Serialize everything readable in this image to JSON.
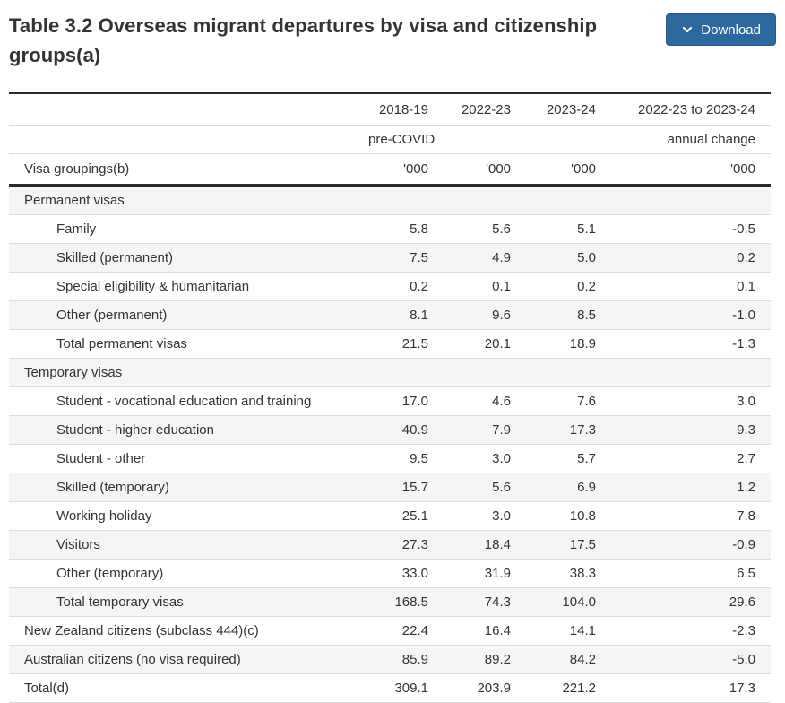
{
  "header": {
    "title": "Table 3.2 Overseas migrant departures by visa and citizenship groups(a)",
    "download_label": "Download",
    "download_icon": "chevron-down-icon"
  },
  "colors": {
    "accent_blue": "#2d689e",
    "text": "#333333",
    "row_shade": "#f5f5f5",
    "border_light": "#dddddd",
    "border_dark": "#2b2b2b"
  },
  "table": {
    "head": {
      "years": [
        "2018-19",
        "2022-23",
        "2023-24",
        "2022-23 to 2023-24"
      ],
      "sub": [
        "pre-COVID",
        "",
        "",
        "annual change"
      ],
      "group_label": "Visa groupings(b)",
      "units": [
        "'000",
        "'000",
        "'000",
        "'000"
      ]
    },
    "rows": [
      {
        "label": "Permanent visas",
        "indent": 0,
        "section": true,
        "values": [
          "",
          "",
          "",
          ""
        ]
      },
      {
        "label": "Family",
        "indent": 1,
        "values": [
          "5.8",
          "5.6",
          "5.1",
          "-0.5"
        ]
      },
      {
        "label": "Skilled (permanent)",
        "indent": 1,
        "values": [
          "7.5",
          "4.9",
          "5.0",
          "0.2"
        ]
      },
      {
        "label": "Special eligibility & humanitarian",
        "indent": 1,
        "values": [
          "0.2",
          "0.1",
          "0.2",
          "0.1"
        ]
      },
      {
        "label": "Other (permanent)",
        "indent": 1,
        "values": [
          "8.1",
          "9.6",
          "8.5",
          "-1.0"
        ]
      },
      {
        "label": "Total permanent visas",
        "indent": 1,
        "values": [
          "21.5",
          "20.1",
          "18.9",
          "-1.3"
        ]
      },
      {
        "label": "Temporary visas",
        "indent": 0,
        "section": true,
        "values": [
          "",
          "",
          "",
          ""
        ]
      },
      {
        "label": "Student - vocational education and training",
        "indent": 1,
        "values": [
          "17.0",
          "4.6",
          "7.6",
          "3.0"
        ]
      },
      {
        "label": "Student - higher education",
        "indent": 1,
        "values": [
          "40.9",
          "7.9",
          "17.3",
          "9.3"
        ]
      },
      {
        "label": "Student - other",
        "indent": 1,
        "values": [
          "9.5",
          "3.0",
          "5.7",
          "2.7"
        ]
      },
      {
        "label": "Skilled (temporary)",
        "indent": 1,
        "values": [
          "15.7",
          "5.6",
          "6.9",
          "1.2"
        ]
      },
      {
        "label": "Working holiday",
        "indent": 1,
        "values": [
          "25.1",
          "3.0",
          "10.8",
          "7.8"
        ]
      },
      {
        "label": "Visitors",
        "indent": 1,
        "values": [
          "27.3",
          "18.4",
          "17.5",
          "-0.9"
        ]
      },
      {
        "label": "Other (temporary)",
        "indent": 1,
        "values": [
          "33.0",
          "31.9",
          "38.3",
          "6.5"
        ]
      },
      {
        "label": "Total temporary visas",
        "indent": 1,
        "values": [
          "168.5",
          "74.3",
          "104.0",
          "29.6"
        ]
      },
      {
        "label": "New Zealand citizens (subclass 444)(c)",
        "indent": 0,
        "values": [
          "22.4",
          "16.4",
          "14.1",
          "-2.3"
        ]
      },
      {
        "label": "Australian citizens (no visa required)",
        "indent": 0,
        "values": [
          "85.9",
          "89.2",
          "84.2",
          "-5.0"
        ]
      },
      {
        "label": "Total(d)",
        "indent": 0,
        "values": [
          "309.1",
          "203.9",
          "221.2",
          "17.3"
        ]
      }
    ]
  }
}
